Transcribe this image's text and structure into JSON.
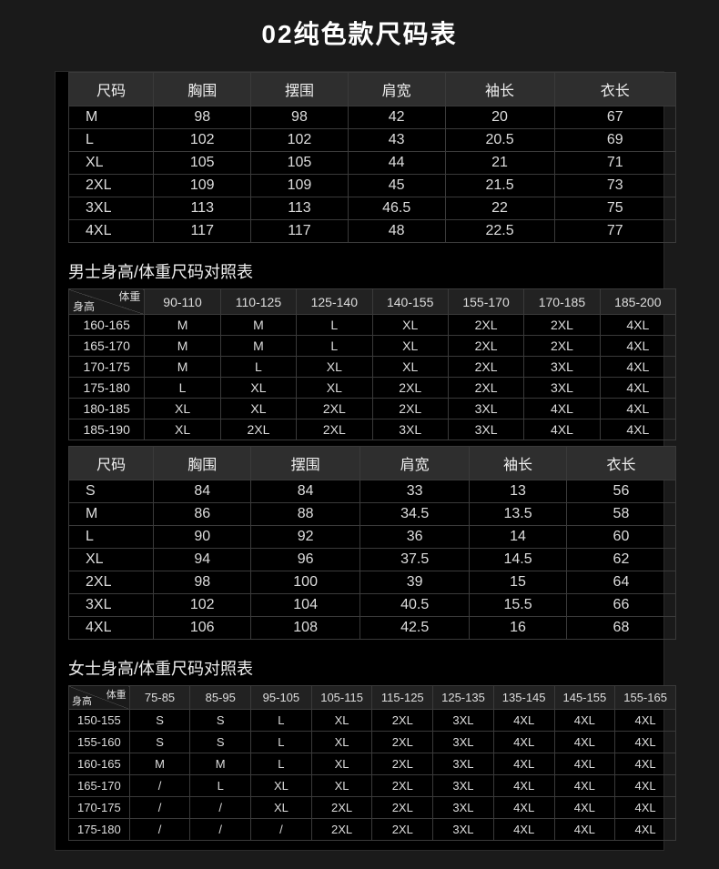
{
  "title": "02纯色款尺码表",
  "colors": {
    "page_bg": "#1a1a1a",
    "panel_bg": "#000000",
    "header_bg": "#2e2e2e",
    "border": "#3a3a3a",
    "text": "#dddddd"
  },
  "men_size_table": {
    "type": "table",
    "columns": [
      "尺码",
      "胸围",
      "摆围",
      "肩宽",
      "袖长",
      "衣长"
    ],
    "rows": [
      [
        "M",
        "98",
        "98",
        "42",
        "20",
        "67"
      ],
      [
        "L",
        "102",
        "102",
        "43",
        "20.5",
        "69"
      ],
      [
        "XL",
        "105",
        "105",
        "44",
        "21",
        "71"
      ],
      [
        "2XL",
        "109",
        "109",
        "45",
        "21.5",
        "73"
      ],
      [
        "3XL",
        "113",
        "113",
        "46.5",
        "22",
        "75"
      ],
      [
        "4XL",
        "117",
        "117",
        "48",
        "22.5",
        "77"
      ]
    ]
  },
  "men_ref": {
    "title": "男士身高/体重尺码对照表",
    "diag_top": "体重",
    "diag_bottom": "身高",
    "weight_ranges": [
      "90-110",
      "110-125",
      "125-140",
      "140-155",
      "155-170",
      "170-185",
      "185-200"
    ],
    "height_ranges": [
      "160-165",
      "165-170",
      "170-175",
      "175-180",
      "180-185",
      "185-190"
    ],
    "grid": [
      [
        "M",
        "M",
        "L",
        "XL",
        "2XL",
        "2XL",
        "4XL"
      ],
      [
        "M",
        "M",
        "L",
        "XL",
        "2XL",
        "2XL",
        "4XL"
      ],
      [
        "M",
        "L",
        "XL",
        "XL",
        "2XL",
        "3XL",
        "4XL"
      ],
      [
        "L",
        "XL",
        "XL",
        "2XL",
        "2XL",
        "3XL",
        "4XL"
      ],
      [
        "XL",
        "XL",
        "2XL",
        "2XL",
        "3XL",
        "4XL",
        "4XL"
      ],
      [
        "XL",
        "2XL",
        "2XL",
        "3XL",
        "3XL",
        "4XL",
        "4XL"
      ]
    ]
  },
  "women_size_table": {
    "type": "table",
    "columns": [
      "尺码",
      "胸围",
      "摆围",
      "肩宽",
      "袖长",
      "衣长"
    ],
    "rows": [
      [
        "S",
        "84",
        "84",
        "33",
        "13",
        "56"
      ],
      [
        "M",
        "86",
        "88",
        "34.5",
        "13.5",
        "58"
      ],
      [
        "L",
        "90",
        "92",
        "36",
        "14",
        "60"
      ],
      [
        "XL",
        "94",
        "96",
        "37.5",
        "14.5",
        "62"
      ],
      [
        "2XL",
        "98",
        "100",
        "39",
        "15",
        "64"
      ],
      [
        "3XL",
        "102",
        "104",
        "40.5",
        "15.5",
        "66"
      ],
      [
        "4XL",
        "106",
        "108",
        "42.5",
        "16",
        "68"
      ]
    ]
  },
  "women_ref": {
    "title": "女士身高/体重尺码对照表",
    "diag_top": "体重",
    "diag_bottom": "身高",
    "weight_ranges": [
      "75-85",
      "85-95",
      "95-105",
      "105-115",
      "115-125",
      "125-135",
      "135-145",
      "145-155",
      "155-165"
    ],
    "height_ranges": [
      "150-155",
      "155-160",
      "160-165",
      "165-170",
      "170-175",
      "175-180"
    ],
    "grid": [
      [
        "S",
        "S",
        "L",
        "XL",
        "2XL",
        "3XL",
        "4XL",
        "4XL",
        "4XL"
      ],
      [
        "S",
        "S",
        "L",
        "XL",
        "2XL",
        "3XL",
        "4XL",
        "4XL",
        "4XL"
      ],
      [
        "M",
        "M",
        "L",
        "XL",
        "2XL",
        "3XL",
        "4XL",
        "4XL",
        "4XL"
      ],
      [
        "/",
        "L",
        "XL",
        "XL",
        "2XL",
        "3XL",
        "4XL",
        "4XL",
        "4XL"
      ],
      [
        "/",
        "/",
        "XL",
        "2XL",
        "2XL",
        "3XL",
        "4XL",
        "4XL",
        "4XL"
      ],
      [
        "/",
        "/",
        "/",
        "2XL",
        "2XL",
        "3XL",
        "4XL",
        "4XL",
        "4XL"
      ]
    ]
  }
}
